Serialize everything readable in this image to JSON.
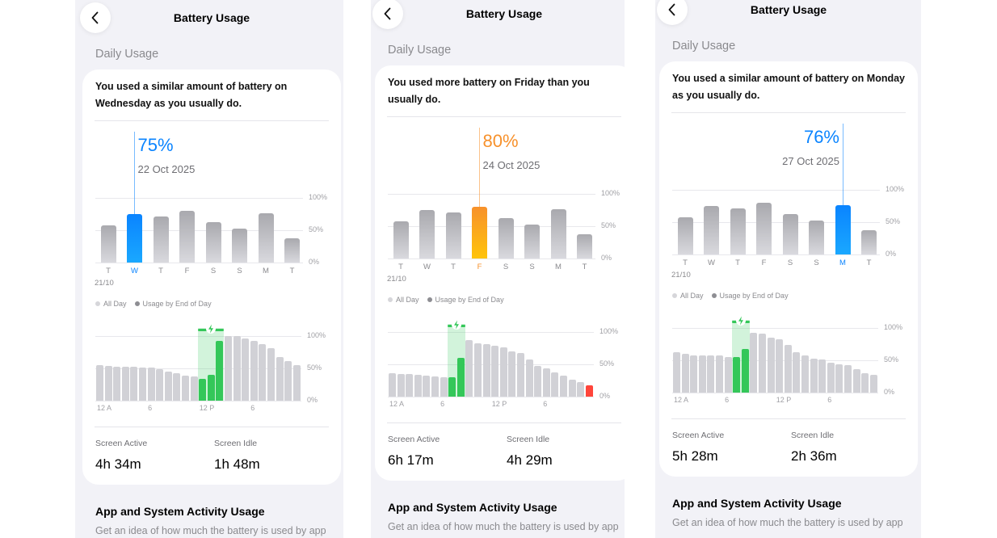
{
  "colors": {
    "background": "#f2f2f7",
    "card": "#ffffff",
    "gray_bar": "#b4b4b9",
    "hourly_gray": "#d1d1d6",
    "charging_green": "#34c759",
    "low_red": "#ff453a",
    "blue": "#0a84ff",
    "orange": "#f7912b"
  },
  "panels": [
    {
      "title": "Battery Usage",
      "back_icon": "chevron-left-icon",
      "section": "Daily Usage",
      "message": "You used a similar amount of battery on Wednesday as you usually do.",
      "highlight": {
        "value": "75%",
        "date": "22 Oct 2025",
        "index": 1,
        "color": "#0a84ff",
        "color2": "#1aa8ff"
      },
      "weekly": {
        "days": [
          "T",
          "W",
          "T",
          "F",
          "S",
          "S",
          "M",
          "T"
        ],
        "values": [
          58,
          75,
          71,
          80,
          63,
          53,
          76,
          38
        ],
        "first_date": "21/10",
        "axis": [
          "100%",
          "50%",
          "0%"
        ]
      },
      "legend": [
        "All Day",
        "Usage by End of Day"
      ],
      "hourly": {
        "values": [
          55,
          54,
          53,
          53,
          52,
          51,
          51,
          49,
          45,
          43,
          39,
          37,
          34,
          40,
          93,
          100,
          100,
          96,
          93,
          87,
          81,
          67,
          61,
          55
        ],
        "charging_hours": [
          12,
          13,
          14
        ],
        "low_hours": [],
        "x_labels": [
          "12 A",
          "6",
          "12 P",
          "6"
        ],
        "axis": [
          "100%",
          "50%",
          "0%"
        ]
      },
      "stats": [
        {
          "label": "Screen Active",
          "value": "4h 34m"
        },
        {
          "label": "Screen Idle",
          "value": "1h 48m"
        }
      ],
      "app_section": {
        "title": "App and System Activity Usage",
        "description": "Get an idea of how much the battery is used by app"
      }
    },
    {
      "title": "Battery Usage",
      "back_icon": "chevron-left-icon",
      "section": "Daily Usage",
      "message": "You used more battery on Friday than you usually do.",
      "highlight": {
        "value": "80%",
        "date": "24 Oct 2025",
        "index": 3,
        "color": "#f7912b",
        "color2": "#ffc40a"
      },
      "weekly": {
        "days": [
          "T",
          "W",
          "T",
          "F",
          "S",
          "S",
          "M",
          "T"
        ],
        "values": [
          58,
          75,
          71,
          80,
          63,
          53,
          76,
          38
        ],
        "first_date": "21/10",
        "axis": [
          "100%",
          "50%",
          "0%"
        ]
      },
      "legend": [
        "All Day",
        "Usage by End of Day"
      ],
      "hourly": {
        "values": [
          36,
          35,
          35,
          34,
          32,
          31,
          30,
          30,
          60,
          87,
          82,
          81,
          79,
          76,
          70,
          67,
          57,
          47,
          44,
          38,
          32,
          26,
          23,
          18
        ],
        "charging_hours": [
          7,
          8
        ],
        "low_hours": [
          23
        ],
        "x_labels": [
          "12 A",
          "6",
          "12 P",
          "6"
        ],
        "axis": [
          "100%",
          "50%",
          "0%"
        ]
      },
      "stats": [
        {
          "label": "Screen Active",
          "value": "6h 17m"
        },
        {
          "label": "Screen Idle",
          "value": "4h 29m"
        }
      ],
      "app_section": {
        "title": "App and System Activity Usage",
        "description": "Get an idea of how much the battery is used by app"
      }
    },
    {
      "title": "Battery Usage",
      "back_icon": "chevron-left-icon",
      "section": "Daily Usage",
      "message": "You used a similar amount of battery on Monday as you usually do.",
      "highlight": {
        "value": "76%",
        "date": "27 Oct 2025",
        "index": 6,
        "color": "#0a84ff",
        "color2": "#1aa8ff"
      },
      "weekly": {
        "days": [
          "T",
          "W",
          "T",
          "F",
          "S",
          "S",
          "M",
          "T"
        ],
        "values": [
          58,
          75,
          71,
          80,
          63,
          53,
          76,
          38
        ],
        "first_date": "21/10",
        "axis": [
          "100%",
          "50%",
          "0%"
        ]
      },
      "legend": [
        "All Day",
        "Usage by End of Day"
      ],
      "hourly": {
        "values": [
          62,
          60,
          58,
          58,
          57,
          57,
          55,
          55,
          67,
          92,
          91,
          85,
          83,
          74,
          62,
          58,
          53,
          51,
          46,
          44,
          42,
          36,
          30,
          28
        ],
        "charging_hours": [
          7,
          8
        ],
        "low_hours": [],
        "x_labels": [
          "12 A",
          "6",
          "12 P",
          "6"
        ],
        "axis": [
          "100%",
          "50%",
          "0%"
        ]
      },
      "stats": [
        {
          "label": "Screen Active",
          "value": "5h 28m"
        },
        {
          "label": "Screen Idle",
          "value": "2h 36m"
        }
      ],
      "app_section": {
        "title": "App and System Activity Usage",
        "description": "Get an idea of how much the battery is used by app"
      }
    }
  ]
}
